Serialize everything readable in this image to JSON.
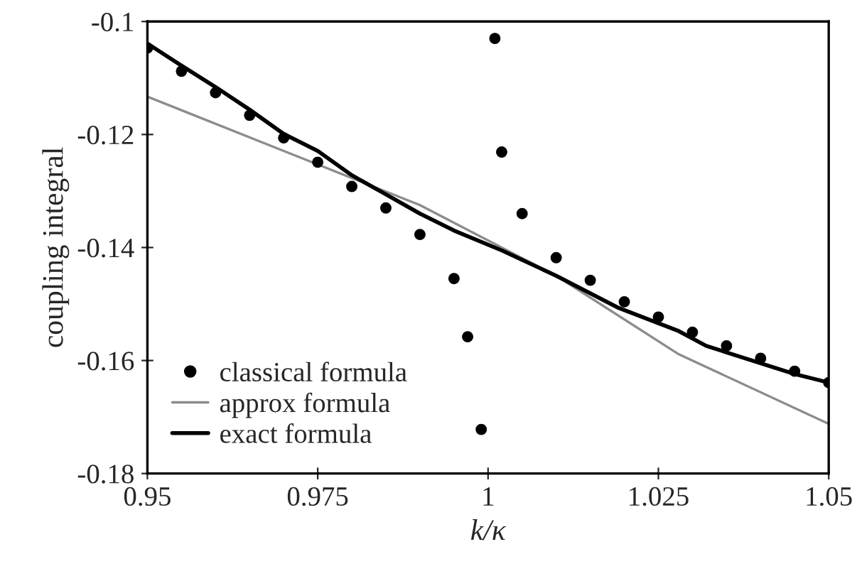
{
  "chart_data": {
    "type": "scatter",
    "xlabel": "k/κ",
    "ylabel": "coupling integral",
    "xlim": [
      0.95,
      1.05
    ],
    "xticks": [
      0.95,
      0.975,
      1,
      1.025,
      1.05
    ],
    "ylim": [
      -0.18,
      -0.1
    ],
    "yticks": [
      -0.18,
      -0.16,
      -0.14,
      -0.12,
      -0.1
    ],
    "grid": false,
    "legend": "bottom left",
    "series": [
      {
        "name": "classical formula",
        "marker": "circle",
        "color": "#000000",
        "x": [
          0.95,
          0.955,
          0.96,
          0.965,
          0.97,
          0.975,
          0.98,
          0.985,
          0.99,
          0.995,
          0.997,
          0.999,
          1.001,
          1.002,
          1.005,
          1.01,
          1.015,
          1.02,
          1.025,
          1.03,
          1.035,
          1.04,
          1.045,
          1.05
        ],
        "values": [
          -0.1047,
          -0.1088,
          -0.1126,
          -0.1166,
          -0.1206,
          -0.1249,
          -0.1292,
          -0.133,
          -0.1377,
          -0.1455,
          -0.1558,
          -0.1722,
          -0.103,
          -0.1231,
          -0.134,
          -0.1418,
          -0.1458,
          -0.1496,
          -0.1523,
          -0.155,
          -0.1574,
          -0.1596,
          -0.1619,
          -0.1639
        ]
      },
      {
        "name": "approx formula",
        "type": "line",
        "marker": "none",
        "line_style": "solid",
        "color": "#8c8c8c",
        "x": [
          0.95,
          0.97,
          0.99,
          1.01,
          1.028,
          1.05
        ],
        "values": [
          -0.1133,
          -0.1229,
          -0.1325,
          -0.145,
          -0.1589,
          -0.1712
        ]
      },
      {
        "name": "exact formula",
        "type": "line",
        "marker": "none",
        "line_style": "solid",
        "color": "#000000",
        "x": [
          0.95,
          0.955,
          0.96,
          0.965,
          0.97,
          0.975,
          0.98,
          0.985,
          0.99,
          0.995,
          1.002,
          1.01,
          1.019,
          1.028,
          1.032,
          1.039,
          1.045,
          1.05
        ],
        "values": [
          -0.1039,
          -0.1078,
          -0.1116,
          -0.1156,
          -0.1199,
          -0.1229,
          -0.1272,
          -0.1306,
          -0.134,
          -0.137,
          -0.1405,
          -0.145,
          -0.1506,
          -0.1548,
          -0.1574,
          -0.1601,
          -0.1624,
          -0.1639
        ]
      }
    ]
  }
}
